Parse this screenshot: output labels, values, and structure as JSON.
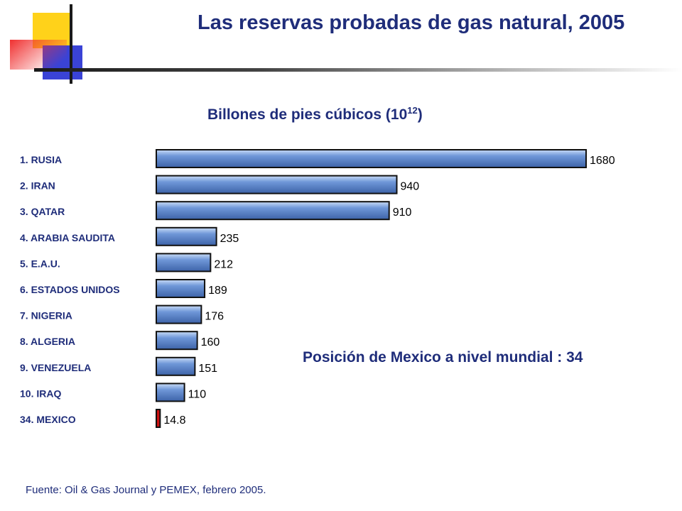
{
  "slide": {
    "title": "Las reservas probadas de gas natural, 2005",
    "subtitle_main": "Billones de pies cúbicos (10",
    "subtitle_exp": "12",
    "subtitle_end": ")",
    "note": "Posición de Mexico a nivel mundial : 34",
    "source": "Fuente: Oil & Gas Journal y PEMEX, febrero 2005."
  },
  "colors": {
    "title": "#1f2d7a",
    "bar": "#6f97d8",
    "highlight": "#cc1111",
    "logo_yellow": "#ffd21a",
    "logo_red": "#f03030",
    "logo_blue": "#3a43d6"
  },
  "chart_data": {
    "type": "bar",
    "orientation": "horizontal",
    "categories": [
      "1. RUSIA",
      "2. IRAN",
      "3. QATAR",
      "4. ARABIA SAUDITA",
      "5. E.A.U.",
      "6. ESTADOS UNIDOS",
      "7. NIGERIA",
      "8.  ALGERIA",
      "9. VENEZUELA",
      "10. IRAQ",
      "34. MEXICO"
    ],
    "values": [
      1680,
      940,
      910,
      235,
      212,
      189,
      176,
      160,
      151,
      110,
      14.8
    ],
    "value_labels": [
      "1680",
      "940",
      "910",
      "235",
      "212",
      "189",
      "176",
      "160",
      "151",
      "110",
      "14.8"
    ],
    "highlight": "34. MEXICO",
    "xlim": [
      0,
      1680
    ],
    "grid": false,
    "legend": "none"
  }
}
